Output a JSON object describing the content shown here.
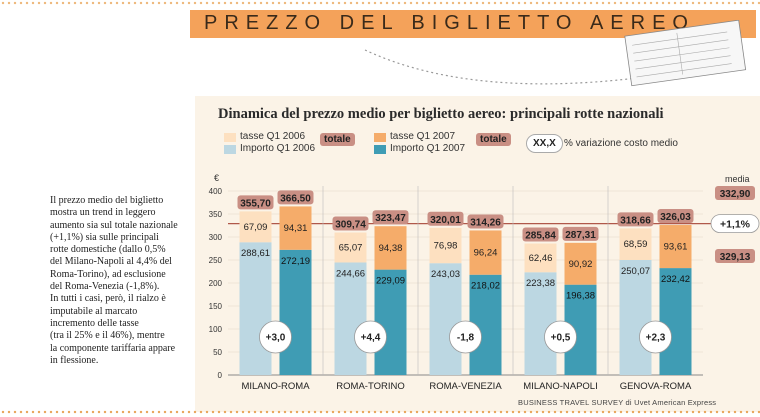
{
  "banner": {
    "title": "PREZZO DEL BIGLIETTO AEREO"
  },
  "chart_data": {
    "type": "bar",
    "title": "Dinamica del prezzo medio per biglietto aereo: principali rotte nazionali",
    "ylabel": "€",
    "ylim": [
      0,
      400
    ],
    "yticks": [
      0,
      50,
      100,
      150,
      200,
      250,
      300,
      350,
      400
    ],
    "categories": [
      "MILANO-ROMA",
      "ROMA-TORINO",
      "ROMA-VENEZIA",
      "MILANO-NAPOLI",
      "GENOVA-ROMA"
    ],
    "series": [
      {
        "name": "Importo Q1 2006",
        "values": [
          288.61,
          244.66,
          243.03,
          223.38,
          250.07
        ],
        "labels": [
          "288,61",
          "244,66",
          "243,03",
          "223,38",
          "250,07"
        ],
        "color": "#bcd7e2"
      },
      {
        "name": "tasse Q1 2006",
        "values": [
          67.09,
          65.07,
          76.98,
          62.46,
          68.59
        ],
        "labels": [
          "67,09",
          "65,07",
          "76,98",
          "62,46",
          "68,59"
        ],
        "color": "#fde0c0"
      },
      {
        "name": "Importo Q1 2007",
        "values": [
          272.19,
          229.09,
          218.02,
          196.38,
          232.42
        ],
        "labels": [
          "272,19",
          "229,09",
          "218,02",
          "196,38",
          "232,42"
        ],
        "color": "#3f9cb4"
      },
      {
        "name": "tasse Q1 2007",
        "values": [
          94.31,
          94.38,
          96.24,
          90.92,
          93.61
        ],
        "labels": [
          "94,31",
          "94,38",
          "96,24",
          "90,92",
          "93,61"
        ],
        "color": "#f5ac6a"
      }
    ],
    "totals_2006": [
      "355,70",
      "309,74",
      "320,01",
      "285,84",
      "318,66"
    ],
    "totals_2007": [
      "366,50",
      "323,47",
      "314,26",
      "287,31",
      "326,03"
    ],
    "variations": [
      "+3,0",
      "+4,4",
      "-1,8",
      "+0,5",
      "+2,3"
    ],
    "media": {
      "label": "media",
      "value_2007": 332.9,
      "value_2007_label": "332,90",
      "value_2006": 329.13,
      "value_2006_label": "329,13",
      "variation": "+1,1%"
    },
    "legend": {
      "tasse_2006": "tasse Q1 2006",
      "importo_2006": "Importo Q1 2006",
      "tasse_2007": "tasse Q1 2007",
      "importo_2007": "Importo Q1 2007",
      "totale": "totale",
      "pct_symbol": "XX,X",
      "pct_label": "% variazione costo medio"
    },
    "colors": {
      "total_badge": "#c98f84",
      "media_line": "#b0584a",
      "circle_bg": "#ffffff"
    }
  },
  "side_text": " Il prezzo medio del biglietto\nmostra un trend in leggero\naumento sia sul totale nazionale\n(+1,1%) sia sulle principali\nrotte domestiche (dallo 0,5%\ndel Milano-Napoli al 4,4% del\nRoma-Torino), ad esclusione\ndel Roma-Venezia (-1,8%).\nIn tutti i casi, però, il rialzo è\nimputabile al marcato\nincremento delle tasse\n(tra il 25% e il 46%), mentre\nla componente tariffaria appare\nin flessione.",
  "footer": "BUSINESS TRAVEL SURVEY di Uvet American Express"
}
